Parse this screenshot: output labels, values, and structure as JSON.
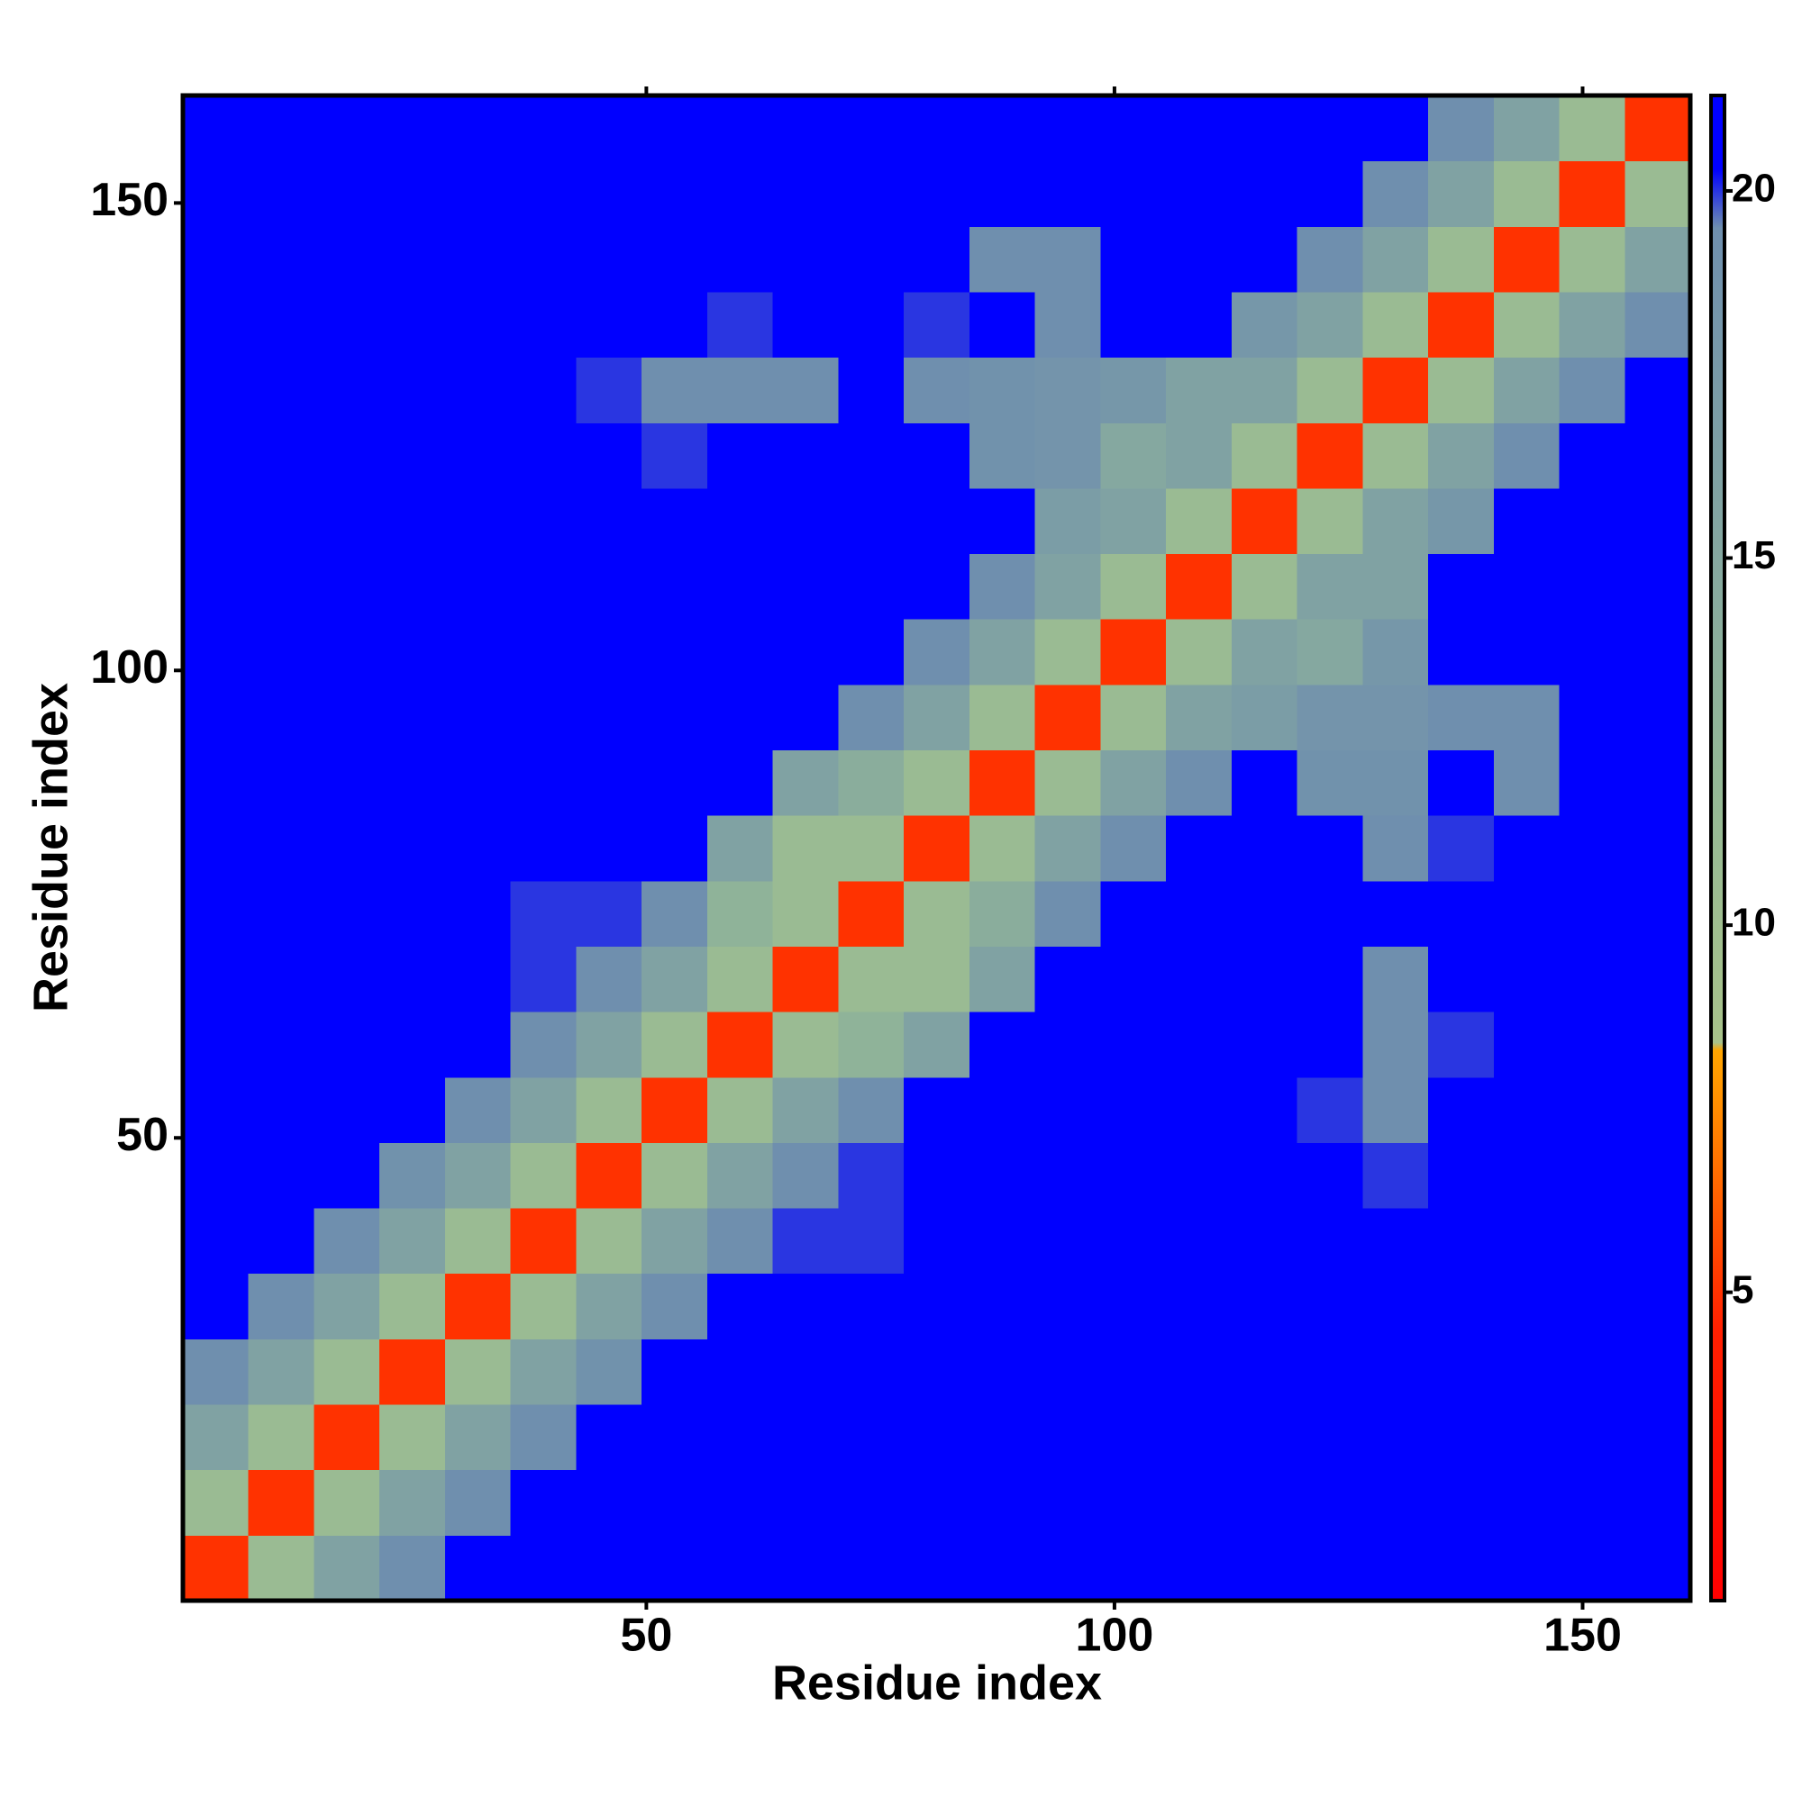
{
  "chart_data": {
    "type": "heatmap",
    "x_label": "Residue index",
    "y_label": "Residue index",
    "x": [
      4,
      11,
      18,
      25,
      32,
      39,
      46,
      53,
      60,
      67,
      74,
      81,
      88,
      95,
      102,
      109,
      116,
      123,
      130,
      137,
      144,
      151,
      158
    ],
    "y": [
      4,
      11,
      18,
      25,
      32,
      39,
      46,
      53,
      60,
      67,
      74,
      81,
      88,
      95,
      102,
      109,
      116,
      123,
      130,
      137,
      144,
      151,
      158
    ],
    "z": [
      [
        5,
        11,
        16,
        19.5,
        21,
        21,
        21,
        21,
        21,
        21,
        21,
        21,
        21,
        21,
        21,
        21,
        21,
        21,
        21,
        21,
        21,
        21,
        21
      ],
      [
        11,
        5,
        11,
        16,
        19.5,
        21,
        21,
        21,
        21,
        21,
        21,
        21,
        21,
        21,
        21,
        21,
        21,
        21,
        21,
        21,
        21,
        21,
        21
      ],
      [
        16,
        11,
        5,
        11,
        16,
        19.5,
        21,
        21,
        21,
        21,
        21,
        21,
        21,
        21,
        21,
        21,
        21,
        21,
        21,
        21,
        21,
        21,
        21
      ],
      [
        19.5,
        16,
        11,
        5,
        11,
        16,
        19,
        21,
        21,
        21,
        21,
        21,
        21,
        21,
        21,
        21,
        21,
        21,
        21,
        21,
        21,
        21,
        21
      ],
      [
        21,
        19.5,
        16,
        11,
        5,
        11,
        16,
        19.5,
        21,
        21,
        21,
        21,
        21,
        21,
        21,
        21,
        21,
        21,
        21,
        21,
        21,
        21,
        21
      ],
      [
        21,
        21,
        19.5,
        16,
        11,
        5,
        11,
        16,
        19.5,
        20,
        20,
        21,
        21,
        21,
        21,
        21,
        21,
        21,
        21,
        21,
        21,
        21,
        21
      ],
      [
        21,
        21,
        21,
        19,
        16,
        11,
        5,
        11,
        16,
        19.5,
        20,
        21,
        21,
        21,
        21,
        21,
        21,
        20.5,
        20,
        21,
        21,
        21,
        21
      ],
      [
        21,
        21,
        21,
        21,
        19.5,
        16,
        11,
        5,
        11,
        16,
        19.5,
        21,
        21,
        21,
        21,
        21,
        21,
        20,
        19.5,
        21,
        21,
        21,
        21
      ],
      [
        21,
        21,
        21,
        21,
        21,
        19.5,
        16,
        11,
        5,
        11,
        13,
        16,
        21,
        21,
        21,
        21,
        21,
        21,
        19.5,
        20,
        21,
        21,
        21
      ],
      [
        21,
        21,
        21,
        21,
        21,
        20,
        19.5,
        16,
        11,
        5,
        11,
        11,
        16,
        21,
        21,
        21,
        21,
        21,
        19.5,
        21,
        21,
        21,
        21
      ],
      [
        21,
        21,
        21,
        21,
        21,
        20,
        20,
        19.5,
        13,
        11,
        5,
        11,
        14,
        19.5,
        21,
        21,
        21,
        21,
        21,
        21,
        21,
        21,
        21
      ],
      [
        21,
        21,
        21,
        21,
        21,
        21,
        21,
        21,
        16,
        11,
        11,
        5,
        11,
        16,
        19.5,
        21,
        21,
        21,
        19.5,
        20,
        21,
        21,
        21
      ],
      [
        21,
        21,
        21,
        21,
        21,
        21,
        21,
        21,
        21,
        16,
        14,
        11,
        5,
        11,
        16,
        19.5,
        21,
        19,
        19,
        21,
        19.5,
        21,
        21
      ],
      [
        21,
        21,
        21,
        21,
        21,
        21,
        21,
        21,
        21,
        21,
        19.5,
        16,
        11,
        5,
        11,
        16,
        17,
        18.5,
        18.5,
        19.5,
        19.5,
        21,
        21
      ],
      [
        21,
        21,
        21,
        21,
        21,
        21,
        21,
        21,
        21,
        21,
        21,
        19.5,
        16,
        11,
        5,
        11,
        16,
        15,
        18,
        21,
        21,
        21,
        21
      ],
      [
        21,
        21,
        21,
        21,
        21,
        21,
        21,
        21,
        21,
        21,
        21,
        21,
        19.5,
        16,
        11,
        5,
        11,
        16,
        16,
        21,
        21,
        21,
        21
      ],
      [
        21,
        21,
        21,
        21,
        21,
        21,
        21,
        21,
        21,
        21,
        21,
        21,
        21,
        17,
        16,
        11,
        5,
        11,
        16,
        18,
        21,
        21,
        21
      ],
      [
        21,
        21,
        21,
        21,
        21,
        21,
        20.5,
        20,
        21,
        21,
        21,
        21,
        19,
        18.5,
        15,
        16,
        11,
        5,
        11,
        16,
        19.5,
        21,
        21
      ],
      [
        21,
        21,
        21,
        21,
        21,
        21,
        20,
        19.5,
        19.5,
        19.5,
        21,
        19.5,
        19,
        18.5,
        18,
        16,
        16,
        11,
        5,
        11,
        16,
        19.5,
        21
      ],
      [
        21,
        21,
        21,
        21,
        21,
        21,
        21,
        21,
        20,
        21,
        21,
        20,
        21,
        19.5,
        21,
        21,
        18,
        16,
        11,
        5,
        11,
        16,
        19.5
      ],
      [
        21,
        21,
        21,
        21,
        21,
        21,
        21,
        21,
        21,
        21,
        21,
        21,
        19.5,
        19.5,
        21,
        21,
        21,
        19.5,
        16,
        11,
        5,
        11,
        16
      ],
      [
        21,
        21,
        21,
        21,
        21,
        21,
        21,
        21,
        21,
        21,
        21,
        21,
        21,
        21,
        21,
        21,
        21,
        21,
        19.5,
        16,
        11,
        5,
        11
      ],
      [
        21,
        21,
        21,
        21,
        21,
        21,
        21,
        21,
        21,
        21,
        21,
        21,
        21,
        21,
        21,
        21,
        21,
        21,
        21,
        19.5,
        16,
        11,
        5
      ]
    ],
    "xlim": [
      0.5,
      161.5
    ],
    "ylim": [
      0.5,
      161.5
    ],
    "xticks": [
      50,
      100,
      150
    ],
    "yticks": [
      50,
      100,
      150
    ],
    "colorbar": {
      "lim": [
        0.8,
        21.3
      ],
      "ticks": [
        5,
        10,
        15,
        20
      ],
      "stops": [
        [
          0.8,
          "#ff0000"
        ],
        [
          4.5,
          "#ff2000"
        ],
        [
          7.5,
          "#ff8c00"
        ],
        [
          8.3,
          "#ffa500"
        ],
        [
          8.4,
          "#a8c28a"
        ],
        [
          12,
          "#94b896"
        ],
        [
          19.5,
          "#6f8fae"
        ],
        [
          20.3,
          "#0000ff"
        ],
        [
          21.3,
          "#0000ff"
        ]
      ]
    }
  }
}
